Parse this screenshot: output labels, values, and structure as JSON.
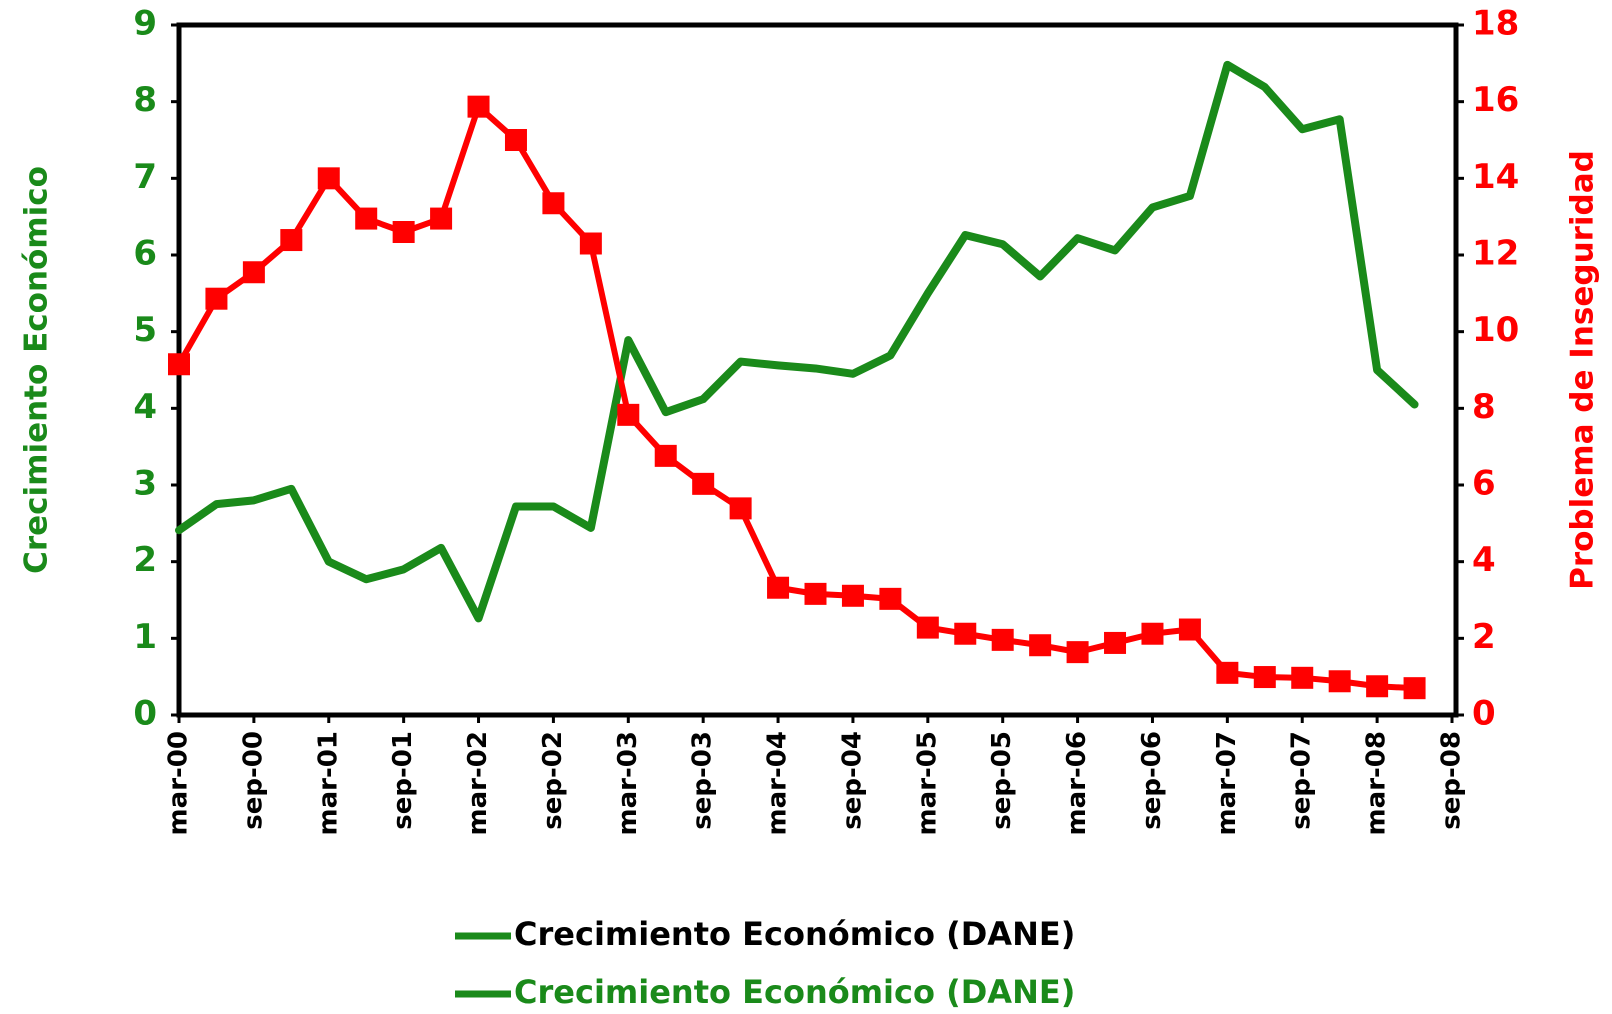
{
  "chart_data": {
    "type": "line",
    "y_label": "Crecimiento Económico",
    "y2_label": "Problema de Inseguridad",
    "categories": [
      "mar-00",
      null,
      "sep-00",
      null,
      "mar-01",
      null,
      "sep-01",
      null,
      "mar-02",
      null,
      "sep-02",
      null,
      "mar-03",
      null,
      "sep-03",
      null,
      "mar-04",
      null,
      "sep-04",
      null,
      "mar-05",
      null,
      "sep-05",
      null,
      "mar-06",
      null,
      "sep-06",
      null,
      "mar-07",
      null,
      "sep-07",
      null,
      "mar-08",
      null,
      "sep-08"
    ],
    "series": [
      {
        "name": "Crecimiento Económico (DANE)",
        "color": "#1a8a1a",
        "axis": "y",
        "values": [
          2.41,
          2.75,
          2.8,
          2.95,
          2.0,
          1.77,
          1.9,
          2.18,
          1.26,
          2.72,
          2.72,
          2.44,
          4.89,
          3.95,
          4.12,
          4.61,
          4.56,
          4.52,
          4.45,
          4.69,
          5.5,
          6.26,
          6.14,
          5.72,
          6.22,
          6.06,
          6.62,
          6.77,
          8.48,
          8.19,
          7.64,
          7.77,
          4.5,
          4.05,
          null
        ]
      },
      {
        "name": "Crecimiento Económico (DANE)",
        "color": "#ff0000",
        "axis": "y2",
        "marker": "square",
        "values": [
          9.15,
          10.86,
          11.55,
          12.39,
          14.0,
          12.95,
          12.6,
          12.95,
          15.87,
          15.0,
          13.35,
          12.3,
          7.83,
          6.76,
          6.03,
          5.39,
          3.32,
          3.16,
          3.11,
          3.03,
          2.28,
          2.12,
          1.96,
          1.82,
          1.64,
          1.88,
          2.12,
          2.23,
          1.1,
          0.99,
          0.97,
          0.88,
          0.75,
          0.7,
          null
        ]
      }
    ],
    "legend": [
      {
        "swatch_color": "#1a8a1a",
        "text_color": "#000000"
      },
      {
        "swatch_color": "#1a8a1a",
        "text_color": "#1a8a1a"
      }
    ],
    "ylim": [
      0,
      9
    ],
    "yticks": [
      0,
      1,
      2,
      3,
      4,
      5,
      6,
      7,
      8,
      9
    ],
    "y_color": "#1a8a1a",
    "y2lim": [
      0,
      18
    ],
    "y2ticks": [
      0,
      2,
      4,
      6,
      8,
      10,
      12,
      14,
      16,
      18
    ],
    "y2_color": "#ff0000"
  }
}
